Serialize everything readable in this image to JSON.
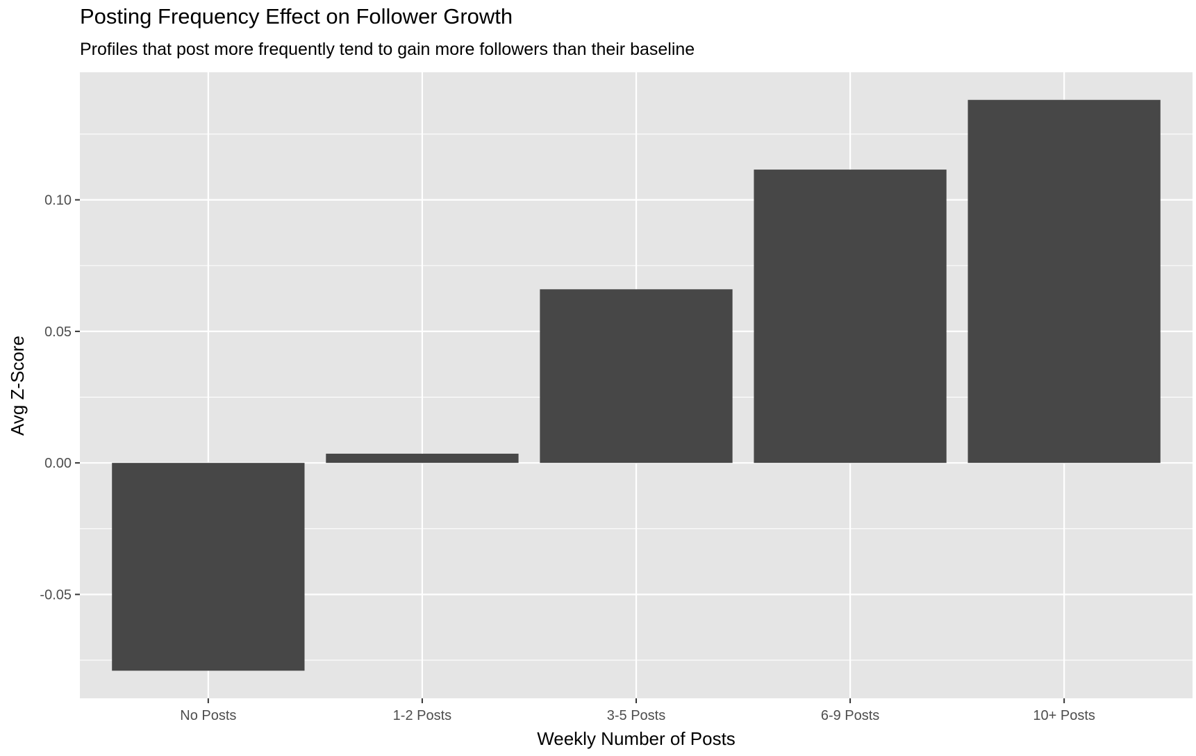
{
  "chart_data": {
    "type": "bar",
    "title": "Posting Frequency Effect on Follower Growth",
    "subtitle": "Profiles that post more frequently tend to gain more followers than their baseline",
    "xlabel": "Weekly Number of Posts",
    "ylabel": "Avg Z-Score",
    "categories": [
      "No Posts",
      "1-2 Posts",
      "3-5 Posts",
      "6-9 Posts",
      "10+ Posts"
    ],
    "values": [
      -0.079,
      0.0035,
      0.066,
      0.1115,
      0.138
    ],
    "ylim": [
      -0.0895,
      0.1485
    ],
    "yticks": [
      -0.05,
      0.0,
      0.05,
      0.1
    ],
    "ytick_labels": [
      "-0.05",
      "0.00",
      "0.05",
      "0.10"
    ],
    "grid": true,
    "legend": "none",
    "colors": {
      "bar": "#474747",
      "panel": "#e5e5e5",
      "grid": "#ffffff",
      "tick": "#333333"
    }
  }
}
